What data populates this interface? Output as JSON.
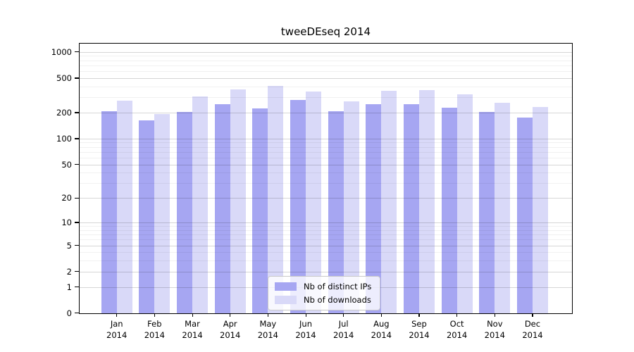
{
  "title": "tweeDEseq 2014",
  "legend": {
    "items": [
      {
        "label": "Nb of distinct IPs",
        "color": "#a6a6f2"
      },
      {
        "label": "Nb of downloads",
        "color": "#d9d9f8"
      }
    ]
  },
  "chart_data": {
    "type": "bar",
    "title": "tweeDEseq 2014",
    "categories": [
      "Jan",
      "Feb",
      "Mar",
      "Apr",
      "May",
      "Jun",
      "Jul",
      "Aug",
      "Sep",
      "Oct",
      "Nov",
      "Dec"
    ],
    "x_year": "2014",
    "series": [
      {
        "name": "Nb of distinct IPs",
        "color": "#a6a6f2",
        "values": [
          205,
          163,
          202,
          250,
          225,
          278,
          206,
          248,
          251,
          228,
          204,
          175
        ]
      },
      {
        "name": "Nb of downloads",
        "color": "#d9d9f8",
        "values": [
          276,
          193,
          308,
          370,
          407,
          348,
          267,
          355,
          360,
          322,
          260,
          230
        ]
      }
    ],
    "xlabel": "",
    "ylabel": "",
    "y_scale": "log10(1+x)",
    "y_ticks": [
      0,
      1,
      2,
      5,
      10,
      20,
      50,
      100,
      200,
      500,
      1000
    ],
    "y_minor_gridlines": [
      3,
      4,
      6,
      7,
      8,
      9,
      30,
      40,
      60,
      70,
      80,
      90,
      300,
      400,
      600,
      700,
      800,
      900
    ],
    "ylim": [
      0,
      1000
    ],
    "grid": true,
    "legend_position": "bottom-center",
    "frame": "full-box"
  }
}
